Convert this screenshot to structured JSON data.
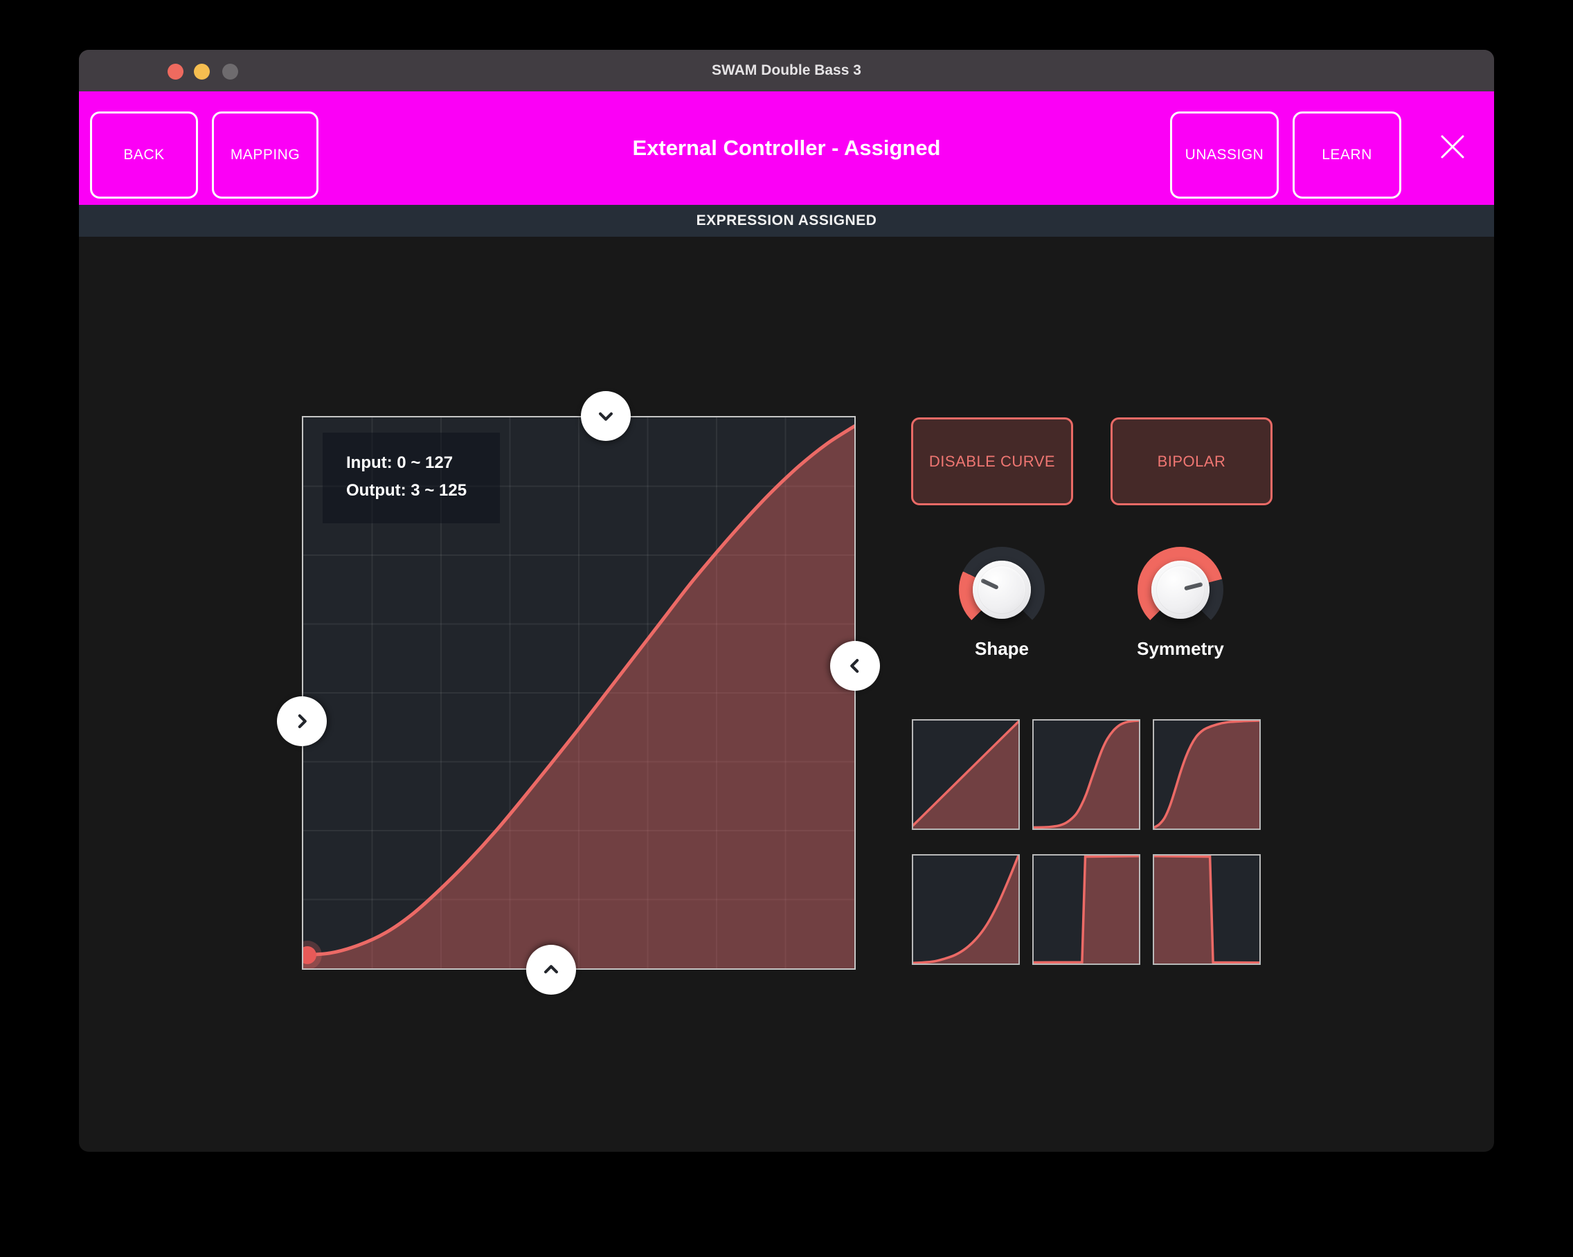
{
  "window": {
    "title": "SWAM Double Bass 3"
  },
  "titlebar_buttons": {
    "close": "close",
    "minimize": "minimize",
    "zoom": "zoom-disabled"
  },
  "header": {
    "back_label": "BACK",
    "mapping_label": "MAPPING",
    "title": "External Controller - Assigned",
    "unassign_label": "UNASSIGN",
    "learn_label": "LEARN"
  },
  "status_bar": {
    "label": "EXPRESSION ASSIGNED"
  },
  "curve_editor": {
    "input_range_label": "Input: 0 ~ 127",
    "output_range_label": "Output: 3 ~ 125",
    "handles": [
      "chevron-down",
      "chevron-left",
      "chevron-right",
      "chevron-up"
    ]
  },
  "buttons": {
    "disable_curve_label": "DISABLE CURVE",
    "bipolar_label": "BIPOLAR"
  },
  "knobs": [
    {
      "label": "Shape",
      "value": 0.26
    },
    {
      "label": "Symmetry",
      "value": 0.78
    }
  ],
  "colors": {
    "accent_magenta": "#fb00f6",
    "curve_red": "#ec6a66",
    "curve_fill": "rgba(236,106,102,0.40)",
    "knob_accent": "#f0685f",
    "status_bg": "#262e38"
  },
  "chart_data": [
    {
      "type": "area",
      "name": "main-response-curve",
      "x_range": [
        0,
        127
      ],
      "y_range": [
        0,
        127
      ],
      "input_min": 0,
      "input_max": 127,
      "output_min": 3,
      "output_max": 125,
      "grid": {
        "cols": 8,
        "rows": 8
      },
      "stroke_width": 5,
      "start_dot": true,
      "smooth": true,
      "points": [
        [
          0,
          0.024
        ],
        [
          0.05,
          0.028
        ],
        [
          0.1,
          0.042
        ],
        [
          0.15,
          0.065
        ],
        [
          0.2,
          0.1
        ],
        [
          0.25,
          0.145
        ],
        [
          0.3,
          0.195
        ],
        [
          0.35,
          0.25
        ],
        [
          0.4,
          0.31
        ],
        [
          0.45,
          0.372
        ],
        [
          0.5,
          0.435
        ],
        [
          0.55,
          0.5
        ],
        [
          0.6,
          0.565
        ],
        [
          0.65,
          0.63
        ],
        [
          0.7,
          0.695
        ],
        [
          0.75,
          0.755
        ],
        [
          0.8,
          0.812
        ],
        [
          0.85,
          0.865
        ],
        [
          0.9,
          0.912
        ],
        [
          0.95,
          0.952
        ],
        [
          1,
          0.984
        ]
      ]
    },
    {
      "type": "area",
      "name": "preset-linear",
      "stroke_width": 3.5,
      "smooth": false,
      "points": [
        [
          0,
          0.03
        ],
        [
          1,
          0.99
        ]
      ]
    },
    {
      "type": "area",
      "name": "preset-s-curve",
      "stroke_width": 3.5,
      "smooth": true,
      "points": [
        [
          0,
          0.01
        ],
        [
          0.15,
          0.015
        ],
        [
          0.25,
          0.03
        ],
        [
          0.32,
          0.06
        ],
        [
          0.4,
          0.13
        ],
        [
          0.45,
          0.21
        ],
        [
          0.5,
          0.32
        ],
        [
          0.55,
          0.46
        ],
        [
          0.6,
          0.6
        ],
        [
          0.65,
          0.73
        ],
        [
          0.7,
          0.83
        ],
        [
          0.76,
          0.91
        ],
        [
          0.82,
          0.96
        ],
        [
          0.9,
          0.99
        ],
        [
          1,
          1
        ]
      ]
    },
    {
      "type": "area",
      "name": "preset-saturating-s",
      "stroke_width": 3.5,
      "smooth": true,
      "points": [
        [
          0,
          0.01
        ],
        [
          0.05,
          0.04
        ],
        [
          0.1,
          0.1
        ],
        [
          0.15,
          0.21
        ],
        [
          0.2,
          0.36
        ],
        [
          0.25,
          0.52
        ],
        [
          0.3,
          0.66
        ],
        [
          0.35,
          0.77
        ],
        [
          0.4,
          0.85
        ],
        [
          0.45,
          0.9
        ],
        [
          0.5,
          0.93
        ],
        [
          0.6,
          0.965
        ],
        [
          0.7,
          0.985
        ],
        [
          0.85,
          0.995
        ],
        [
          1,
          1
        ]
      ]
    },
    {
      "type": "area",
      "name": "preset-exponential",
      "stroke_width": 3.5,
      "smooth": true,
      "points": [
        [
          0,
          0.005
        ],
        [
          0.1,
          0.01
        ],
        [
          0.2,
          0.02
        ],
        [
          0.3,
          0.045
        ],
        [
          0.4,
          0.08
        ],
        [
          0.5,
          0.14
        ],
        [
          0.6,
          0.23
        ],
        [
          0.7,
          0.36
        ],
        [
          0.8,
          0.54
        ],
        [
          0.9,
          0.76
        ],
        [
          1,
          1
        ]
      ]
    },
    {
      "type": "area",
      "name": "preset-step-up",
      "stroke_width": 3.5,
      "smooth": false,
      "points": [
        [
          0,
          0.01
        ],
        [
          0.46,
          0.012
        ],
        [
          0.49,
          0.99
        ],
        [
          1,
          0.995
        ]
      ]
    },
    {
      "type": "area",
      "name": "preset-step-down",
      "stroke_width": 3.5,
      "smooth": false,
      "points": [
        [
          0,
          0.995
        ],
        [
          0.53,
          0.99
        ],
        [
          0.56,
          0.01
        ],
        [
          1,
          0.008
        ]
      ]
    }
  ]
}
